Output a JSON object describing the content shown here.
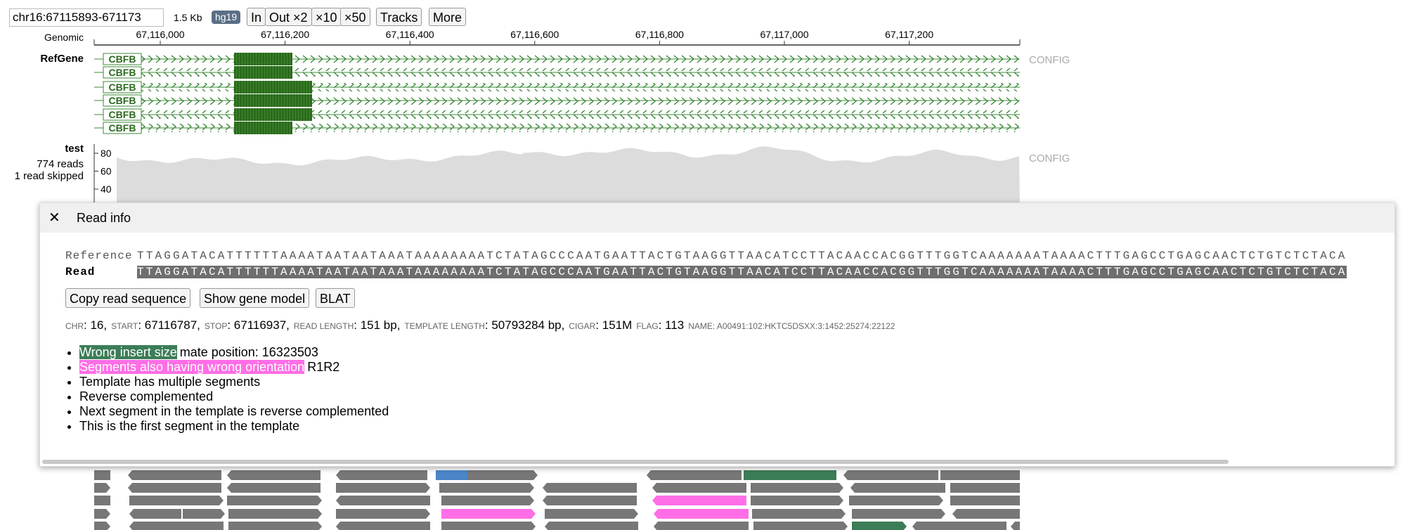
{
  "toolbar": {
    "locus": "chr16:67115893-671173",
    "size": "1.5 Kb",
    "genome": "hg19",
    "buttons": [
      "In",
      "Out ×2",
      "×10",
      "×50",
      "Tracks",
      "More"
    ]
  },
  "ruler": {
    "label": "Genomic",
    "ticks": [
      "67,116,000",
      "67,116,200",
      "67,116,400",
      "67,116,600",
      "67,116,800",
      "67,117,000",
      "67,117,200"
    ]
  },
  "refgene": {
    "label": "RefGene",
    "genes": [
      "CBFB",
      "CBFB",
      "CBFB",
      "CBFB",
      "CBFB",
      "CBFB"
    ],
    "config": "CONFIG"
  },
  "coverage": {
    "label": "test",
    "reads": "774 reads",
    "skipped": "1 read skipped",
    "yticks": [
      80,
      60,
      40
    ],
    "config": "CONFIG"
  },
  "popup": {
    "close": "✕",
    "title": "Read info",
    "reference_label": "Reference",
    "read_label": "Read",
    "reference": "TTAGGATACATTTTTTAAAATAATAATAAATAAAAAAAATCTATAGCCCAATGAATTACTGTAAGGTTAACATCCTTACAACCACGGTTTGGTCAAAAAAATAAAACTTTGAGCCTGAGCAACTCTGTCTCTACA",
    "read": "TTAGGATACATTTTTTAAAATAATAATAAATAAAAAAAATCTATAGCCCAATGAATTACTGTAAGGTTAACATCCTTACAACCACGGTTTGGTCAAAAAAATAAAACTTTGAGCCTGAGCAACTCTGTCTCTACA",
    "buttons": [
      "Copy read sequence",
      "Show gene model",
      "BLAT"
    ],
    "fields": [
      {
        "key": "CHR",
        "value": ": 16,"
      },
      {
        "key": "START",
        "value": ": 67116787,"
      },
      {
        "key": "STOP",
        "value": ": 67116937,"
      },
      {
        "key": "READ LENGTH",
        "value": ": 151 bp,"
      },
      {
        "key": "TEMPLATE LENGTH",
        "value": ": 50793284 bp,"
      },
      {
        "key": "CIGAR",
        "value": ": 151M"
      },
      {
        "key": "FLAG",
        "value": ": 113"
      },
      {
        "key": "NAME",
        "value": ": A00491:102:HKTC5DSXX:3:1452:25274:22122"
      }
    ],
    "flags": [
      {
        "tag": "Wrong insert size",
        "color": "#3b7d57",
        "text": "mate position: 16323503"
      },
      {
        "tag": "Segments also having wrong orientation",
        "color": "#ff6ee6",
        "text": "R1R2"
      },
      {
        "text": "Template has multiple segments"
      },
      {
        "text": "Reverse complemented"
      },
      {
        "text": "Next segment in the template is reverse complemented"
      },
      {
        "text": "This is the first segment in the template"
      }
    ]
  }
}
